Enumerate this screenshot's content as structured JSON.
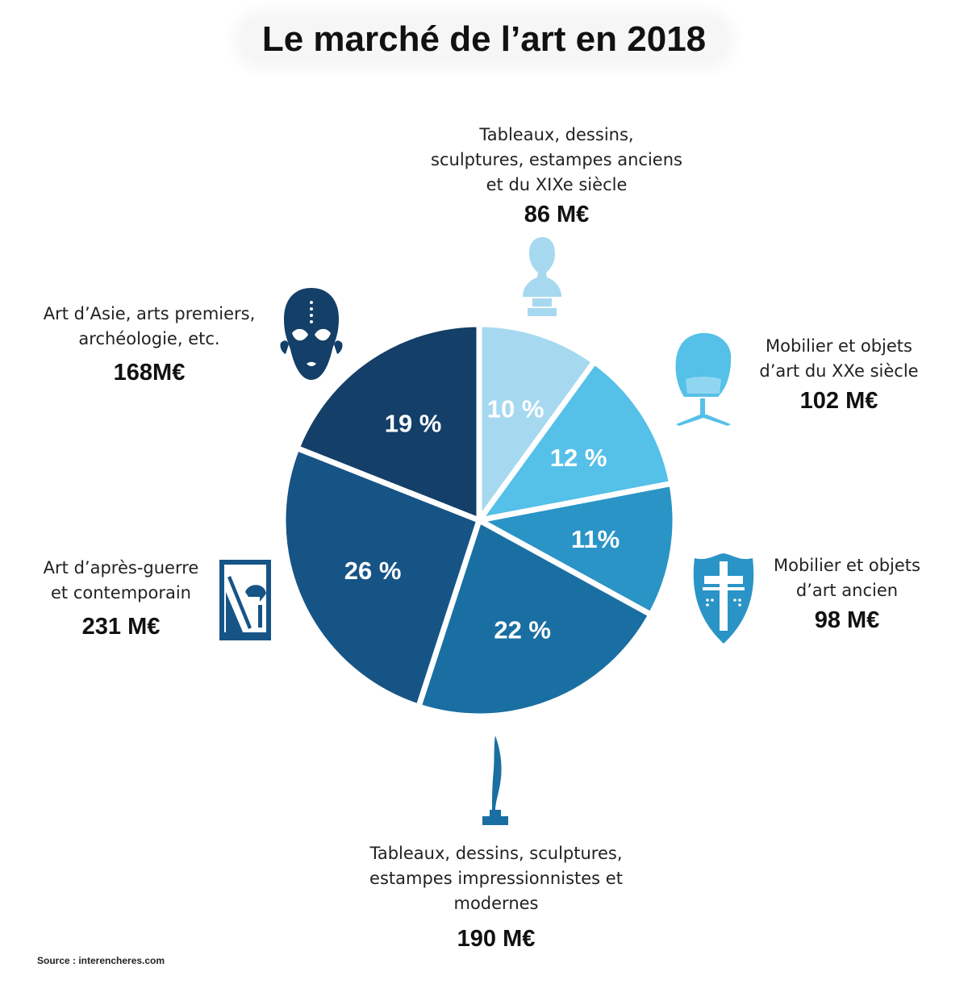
{
  "title": "Le marché de l’art en 2018",
  "source": "Source : interencheres.com",
  "chart_data": {
    "type": "pie",
    "title": "Le marché de l’art en 2018",
    "slices": [
      {
        "label": "Tableaux, dessins, sculptures, estampes anciens et du XIXe siècle",
        "value": 10,
        "pct_label": "10 %",
        "amount": "86 M€",
        "color": "#a6d9f0",
        "icon": "bust-icon"
      },
      {
        "label": "Mobilier et objets d’art du XXe siècle",
        "value": 12,
        "pct_label": "12 %",
        "amount": "102 M€",
        "color": "#55c0e8",
        "icon": "egg-chair-icon"
      },
      {
        "label": "Mobilier et objets d’art ancien",
        "value": 11,
        "pct_label": "11%",
        "amount": "98 M€",
        "color": "#2a94c6",
        "icon": "cross-shield-icon"
      },
      {
        "label": "Tableaux, dessins, sculptures, estampes impressionnistes et modernes",
        "value": 22,
        "pct_label": "22 %",
        "amount": "190 M€",
        "color": "#1a6fa2",
        "icon": "sculpture-icon"
      },
      {
        "label": "Art d’après-guerre et contemporain",
        "value": 26,
        "pct_label": "26 %",
        "amount": "231 M€",
        "color": "#175486",
        "icon": "abstract-art-icon"
      },
      {
        "label": "Art d’Asie, arts premiers, archéologie, etc.",
        "value": 19,
        "pct_label": "19 %",
        "amount": "168M€",
        "color": "#133f68",
        "icon": "african-mask-icon"
      }
    ]
  },
  "labels": {
    "l0": {
      "lines": [
        "Tableaux, dessins,",
        "sculptures, estampes anciens",
        "et du XIXe siècle"
      ]
    },
    "l1": {
      "lines": [
        "Mobilier et objets",
        "d’art du XXe siècle"
      ]
    },
    "l2": {
      "lines": [
        "Mobilier et objets",
        "d’art ancien"
      ]
    },
    "l3": {
      "lines": [
        "Tableaux, dessins, sculptures,",
        "estampes impressionnistes et",
        "modernes"
      ]
    },
    "l4": {
      "lines": [
        "Art d’après-guerre",
        "et contemporain"
      ]
    },
    "l5": {
      "lines": [
        "Art d’Asie, arts premiers,",
        "archéologie, etc."
      ]
    }
  }
}
